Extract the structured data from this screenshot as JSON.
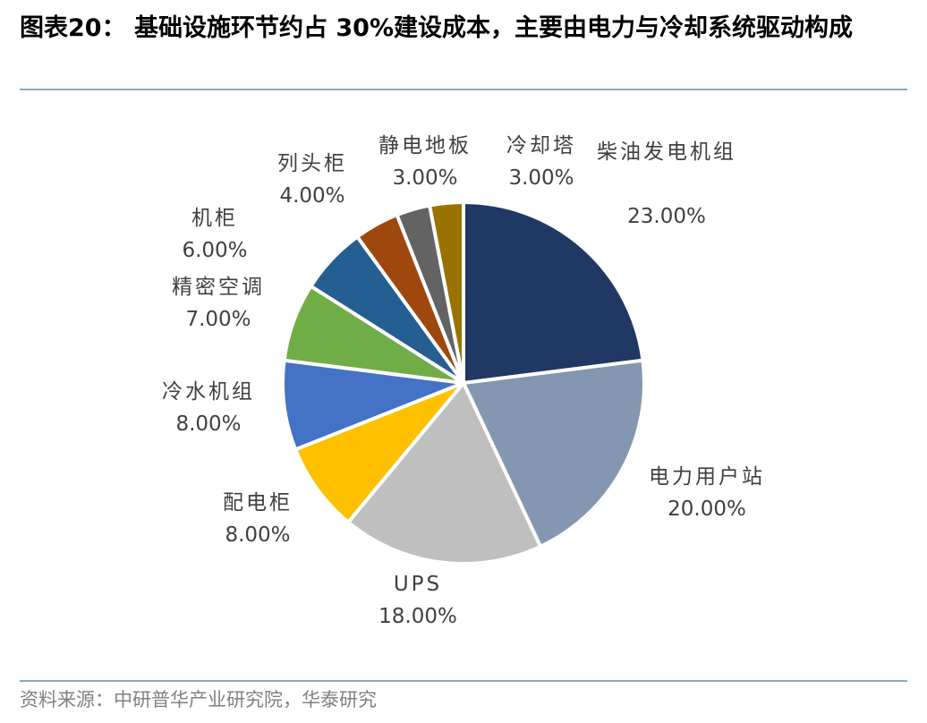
{
  "header": {
    "title": "图表20：  基础设施环节约占 30%建设成本，主要由电力与冷却系统驱动构成"
  },
  "footer": {
    "source": "资料来源：中研普华产业研究院，华泰研究"
  },
  "chart_data": {
    "type": "pie",
    "title": "",
    "start_angle_deg": 0,
    "direction": "clockwise",
    "slices": [
      {
        "label": "柴油发电机组",
        "value": 23.0,
        "value_label": "23.00%",
        "color": "#1f3864"
      },
      {
        "label": "电力用户站",
        "value": 20.0,
        "value_label": "20.00%",
        "color": "#8497b0"
      },
      {
        "label": "UPS",
        "value": 18.0,
        "value_label": "18.00%",
        "color": "#bfbfbf"
      },
      {
        "label": "配电柜",
        "value": 8.0,
        "value_label": "8.00%",
        "color": "#ffc000"
      },
      {
        "label": "冷水机组",
        "value": 8.0,
        "value_label": "8.00%",
        "color": "#4472c4"
      },
      {
        "label": "精密空调",
        "value": 7.0,
        "value_label": "7.00%",
        "color": "#70ad47"
      },
      {
        "label": "机柜",
        "value": 6.0,
        "value_label": "6.00%",
        "color": "#255e91"
      },
      {
        "label": "列头柜",
        "value": 4.0,
        "value_label": "4.00%",
        "color": "#9e480e"
      },
      {
        "label": "静电地板",
        "value": 3.0,
        "value_label": "3.00%",
        "color": "#636363"
      },
      {
        "label": "冷却塔",
        "value": 3.0,
        "value_label": "3.00%",
        "color": "#997300"
      }
    ]
  }
}
